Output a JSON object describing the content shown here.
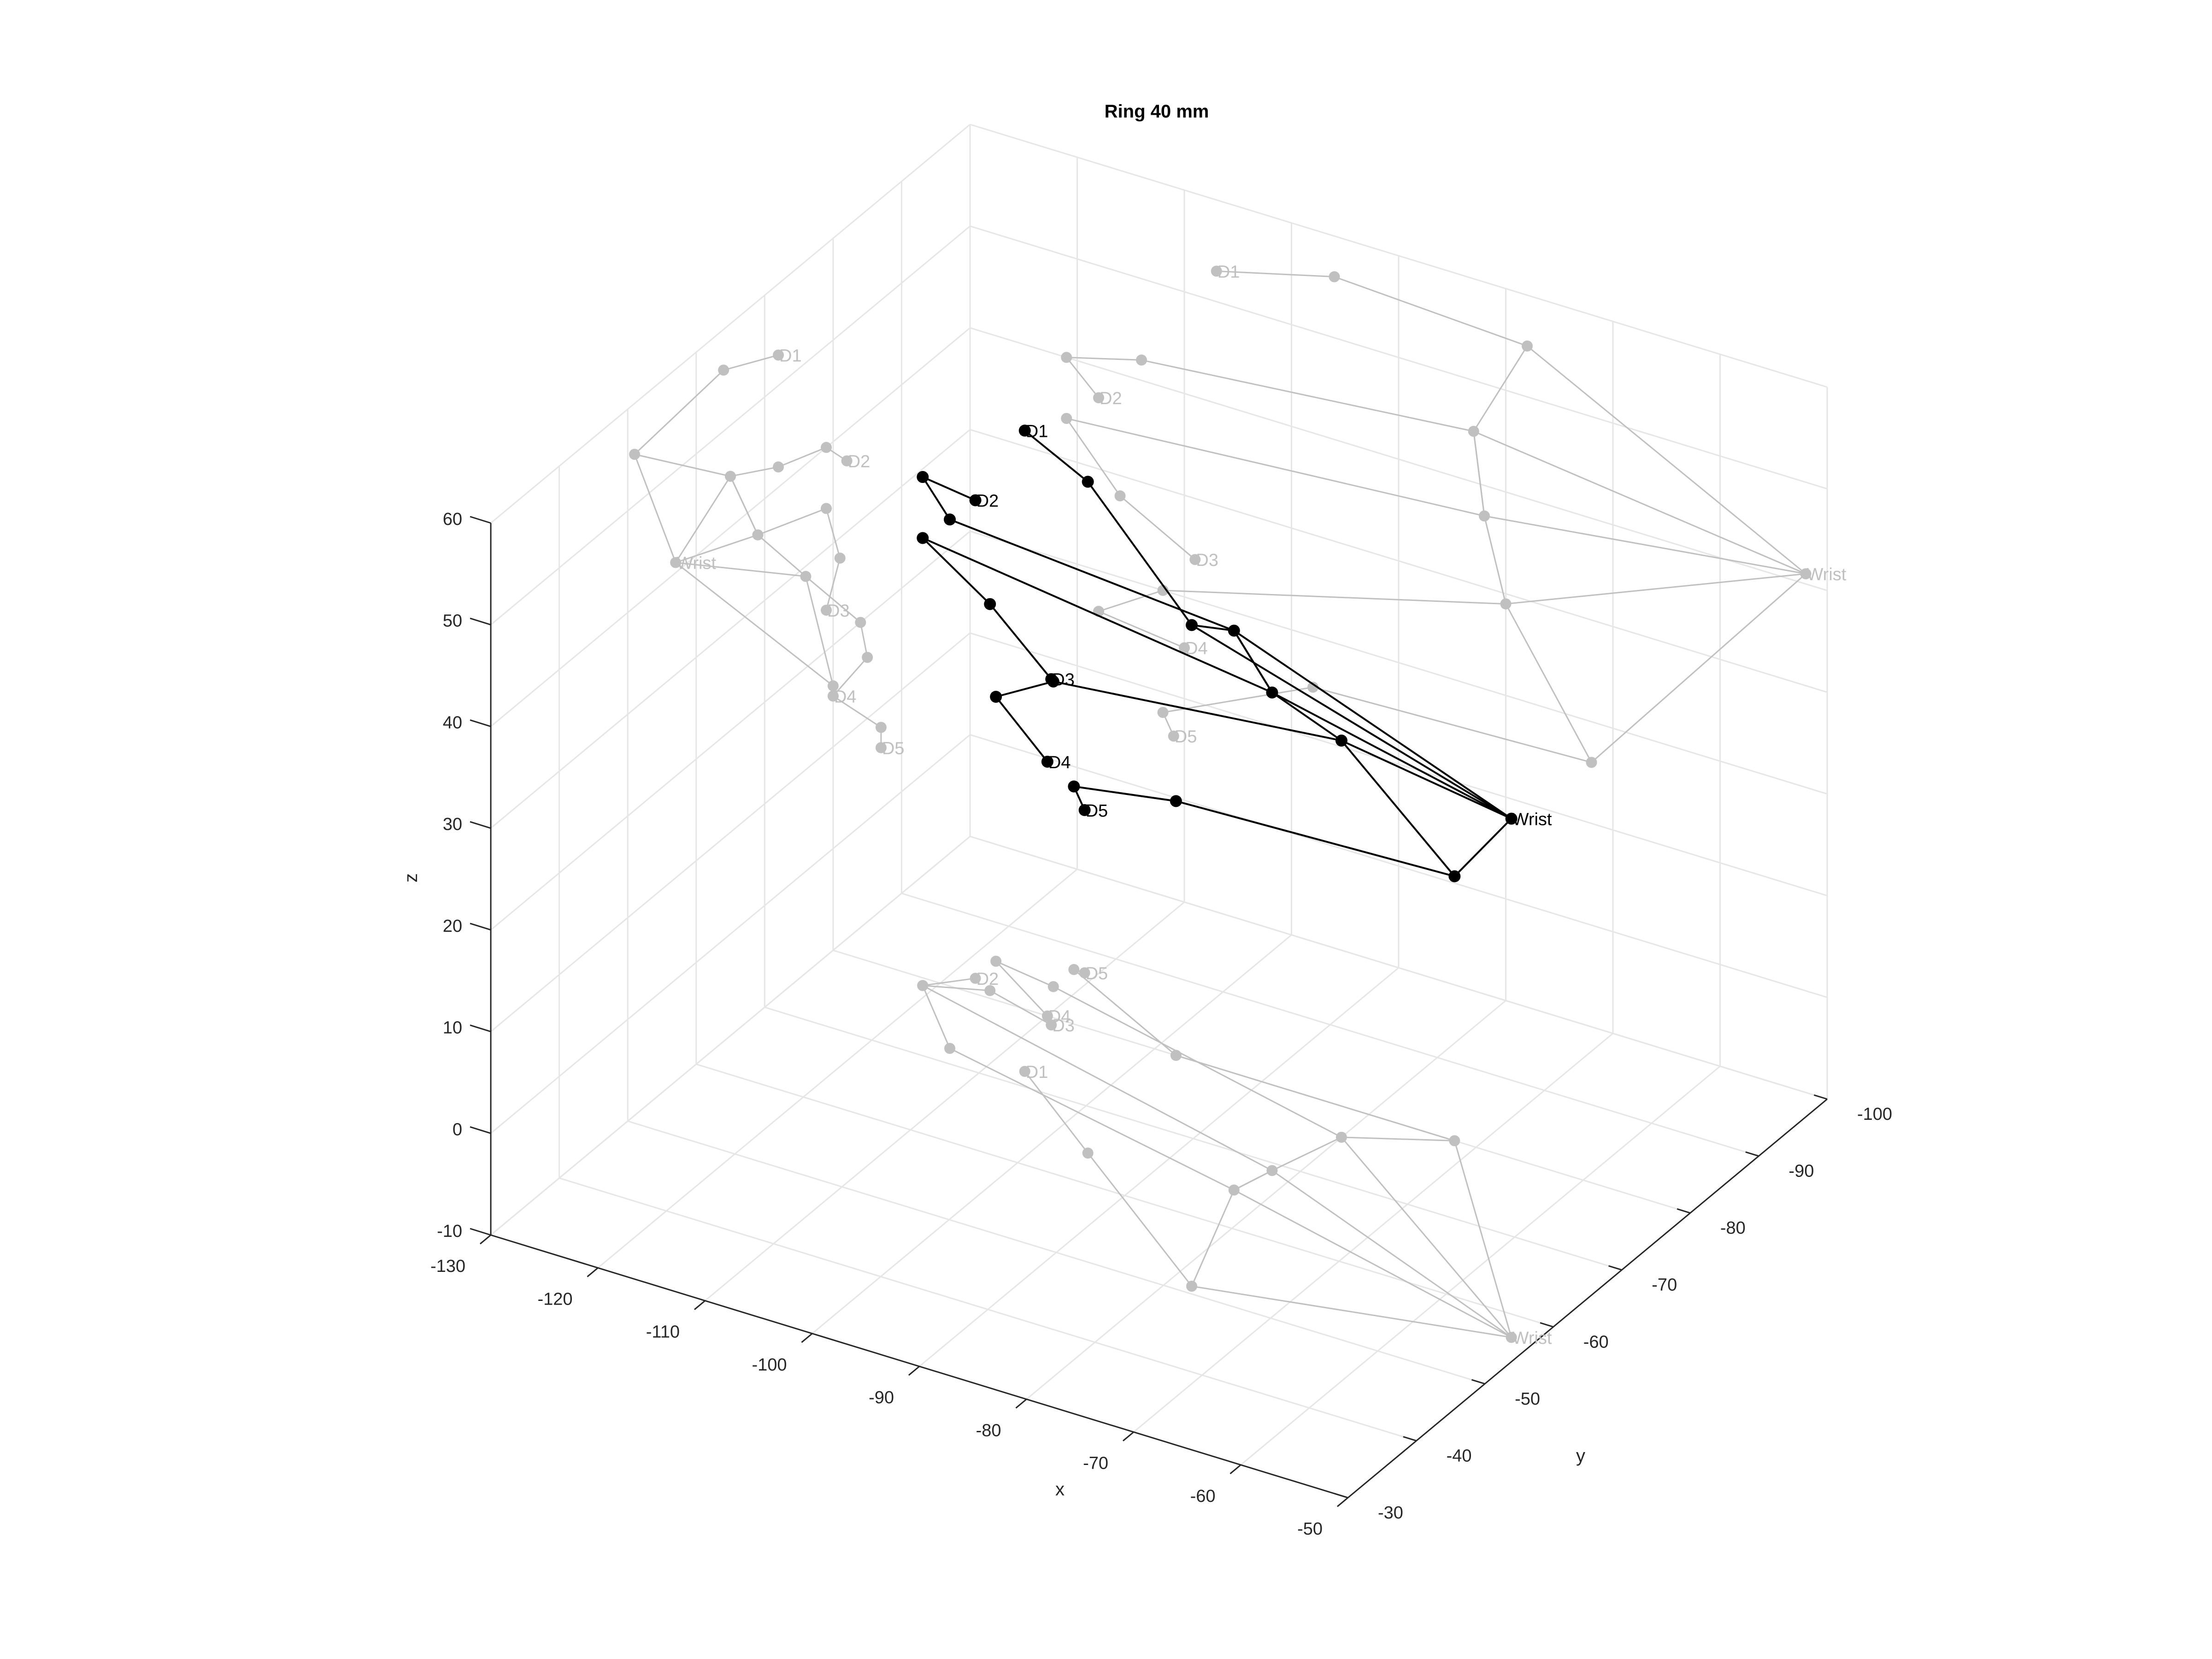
{
  "chart_data": {
    "type": "scatter",
    "title": "Ring 40 mm",
    "xlabel": "x",
    "ylabel": "y",
    "zlabel": "z",
    "xlim": [
      -130,
      -50
    ],
    "ylim": [
      -100,
      -30
    ],
    "zlim": [
      -10,
      60
    ],
    "x_ticks": [
      -130,
      -120,
      -110,
      -100,
      -90,
      -80,
      -70,
      -60,
      -50
    ],
    "y_ticks": [
      -100,
      -90,
      -80,
      -70,
      -60,
      -50,
      -40,
      -30
    ],
    "z_ticks": [
      -10,
      0,
      10,
      20,
      30,
      40,
      50,
      60
    ],
    "grid": true,
    "point_labels": [
      "Wrist",
      "D1",
      "D2",
      "D3",
      "D4",
      "D5"
    ],
    "colors": {
      "hand": "#000000",
      "projection": "#c0c0c0",
      "grid": "#e6e6e6",
      "axis": "#262626"
    },
    "segments": [
      [
        "Wrist",
        "T1",
        "T2",
        "D1"
      ],
      [
        "Wrist",
        "M2",
        "I1",
        "I2",
        "D2"
      ],
      [
        "Wrist",
        "M3",
        "C1",
        "C2",
        "D3"
      ],
      [
        "Wrist",
        "M4",
        "R1",
        "R2",
        "D4"
      ],
      [
        "Wrist",
        "M5",
        "P1",
        "P2",
        "D5"
      ],
      [
        "T1",
        "M2",
        "M3",
        "M4",
        "M5"
      ],
      [
        "M2",
        "M3"
      ]
    ],
    "points": {
      "Wrist": [
        -52,
        -57,
        41
      ],
      "T1": [
        -78,
        -51,
        55
      ],
      "T2": [
        -96,
        -64,
        56
      ],
      "D1": [
        -107,
        -72,
        53
      ],
      "M2": [
        -83,
        -65,
        45
      ],
      "I1": [
        -114,
        -72,
        42
      ],
      "I2": [
        -121,
        -79,
        40
      ],
      "D2": [
        -118,
        -82,
        37
      ],
      "M3": [
        -82,
        -69,
        37
      ],
      "C1": [
        -121,
        -79,
        34
      ],
      "C2": [
        -116,
        -81,
        28
      ],
      "D3": [
        -109,
        -79,
        24
      ],
      "M4": [
        -80,
        -76,
        29
      ],
      "R1": [
        -112,
        -84,
        20
      ],
      "R2": [
        -118,
        -85,
        16
      ],
      "D4": [
        -110,
        -80,
        15
      ],
      "M5": [
        -72,
        -80,
        16
      ],
      "P1": [
        -98,
        -80,
        15
      ],
      "P2": [
        -112,
        -87,
        8
      ],
      "D5": [
        -111,
        -87,
        6
      ]
    }
  }
}
